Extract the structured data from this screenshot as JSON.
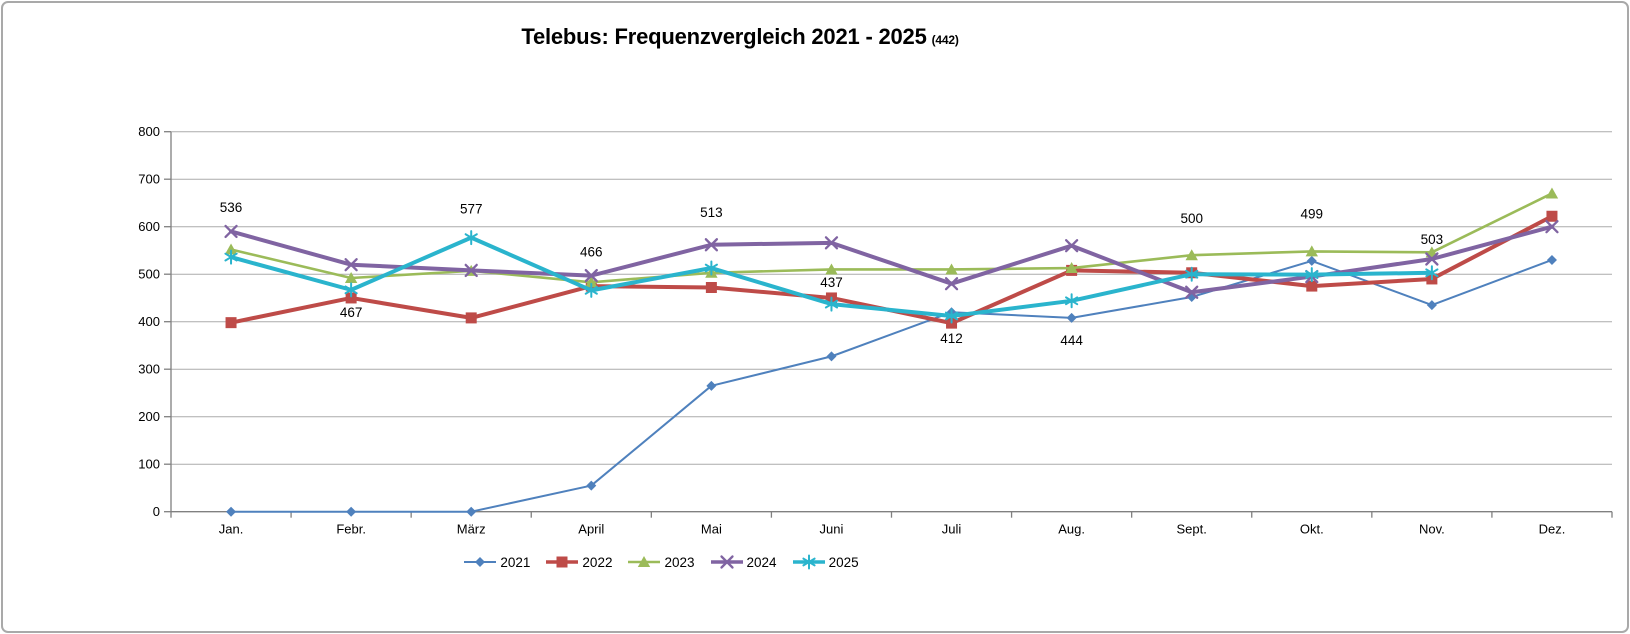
{
  "chart_data": {
    "type": "line",
    "title": "Telebus: Frequenzvergleich 2021 - 2025",
    "title_note": "(442)",
    "categories": [
      "Jan.",
      "Febr.",
      "März",
      "April",
      "Mai",
      "Juni",
      "Juli",
      "Aug.",
      "Sept.",
      "Okt.",
      "Nov.",
      "Dez."
    ],
    "xlabel": "",
    "ylabel": "",
    "ylim": [
      0,
      800
    ],
    "ytick_step": 100,
    "ytick_labels": [
      "0",
      "100",
      "200",
      "300",
      "400",
      "500",
      "600",
      "700",
      "800"
    ],
    "grid": true,
    "legend_position": "bottom",
    "axis_color": "#808080",
    "grid_color": "#ababab",
    "series": [
      {
        "name": "2021",
        "color": "#4F81BD",
        "marker": "diamond",
        "line_width": 2,
        "values": [
          0,
          0,
          0,
          55,
          265,
          327,
          420,
          408,
          452,
          528,
          435,
          530
        ]
      },
      {
        "name": "2022",
        "color": "#BE4B48",
        "marker": "square",
        "line_width": 4,
        "values": [
          398,
          450,
          408,
          475,
          472,
          450,
          397,
          508,
          503,
          475,
          490,
          622
        ]
      },
      {
        "name": "2023",
        "color": "#9BBB59",
        "marker": "triangle",
        "line_width": 2.6,
        "values": [
          552,
          492,
          507,
          483,
          503,
          510,
          510,
          513,
          540,
          548,
          546,
          670
        ]
      },
      {
        "name": "2024",
        "color": "#8064A2",
        "marker": "x",
        "line_width": 4,
        "values": [
          590,
          520,
          508,
          497,
          562,
          566,
          480,
          560,
          462,
          495,
          532,
          600
        ]
      },
      {
        "name": "2025",
        "color": "#2AB4CD",
        "marker": "star",
        "line_width": 4,
        "values": [
          536,
          467,
          577,
          466,
          513,
          437,
          412,
          444,
          500,
          499,
          503,
          null
        ]
      }
    ],
    "data_labels": {
      "series": "2025",
      "points": [
        {
          "category": "Jan.",
          "text": "536",
          "dy": -45
        },
        {
          "category": "Febr.",
          "text": "467",
          "dy": 27
        },
        {
          "category": "März",
          "text": "577",
          "dy": -24
        },
        {
          "category": "April",
          "text": "466",
          "dy": -34
        },
        {
          "category": "Mai",
          "text": "513",
          "dy": -51
        },
        {
          "category": "Juni",
          "text": "437",
          "dy": -17
        },
        {
          "category": "Juli",
          "text": "412",
          "dy": 27
        },
        {
          "category": "Aug.",
          "text": "444",
          "dy": 44
        },
        {
          "category": "Sept.",
          "text": "500",
          "dy": -51
        },
        {
          "category": "Okt.",
          "text": "499",
          "dy": -56
        },
        {
          "category": "Nov.",
          "text": "503",
          "dy": -29
        }
      ]
    }
  }
}
